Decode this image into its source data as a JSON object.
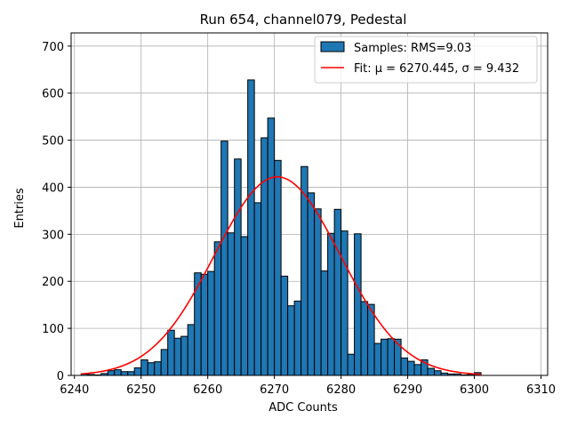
{
  "chart_data": {
    "type": "bar",
    "title": "Run 654, channel079, Pedestal",
    "xlabel": "ADC Counts",
    "ylabel": "Entries",
    "xlim": [
      6239.5,
      6311.0
    ],
    "ylim": [
      0,
      728
    ],
    "xticks": [
      6240,
      6250,
      6260,
      6270,
      6280,
      6290,
      6300,
      6310
    ],
    "yticks": [
      0,
      100,
      200,
      300,
      400,
      500,
      600,
      700
    ],
    "grid": true,
    "legend_position": "top-right",
    "histogram": {
      "name": "Samples: RMS=9.03",
      "color": "#1f77b4",
      "edge_color": "#000000",
      "bin_width": 1,
      "bin_start": 6241,
      "counts": [
        3,
        2,
        1,
        4,
        10,
        12,
        8,
        8,
        16,
        33,
        27,
        29,
        55,
        96,
        79,
        83,
        108,
        218,
        215,
        221,
        284,
        498,
        303,
        460,
        295,
        628,
        367,
        505,
        547,
        457,
        211,
        148,
        158,
        444,
        388,
        354,
        222,
        302,
        353,
        307,
        45,
        301,
        157,
        151,
        68,
        77,
        78,
        77,
        37,
        30,
        23,
        33,
        15,
        10,
        5,
        3,
        3,
        1,
        2,
        6
      ]
    },
    "fit": {
      "name": "Fit: $\\mu$ = 6270.445, $\\sigma$ = 9.432",
      "legend_label": "Fit: μ = 6270.445, σ = 9.432",
      "color": "#ff0000",
      "mu": 6270.445,
      "sigma": 9.432,
      "amplitude": 422,
      "x_range": [
        6241,
        6301
      ]
    }
  }
}
